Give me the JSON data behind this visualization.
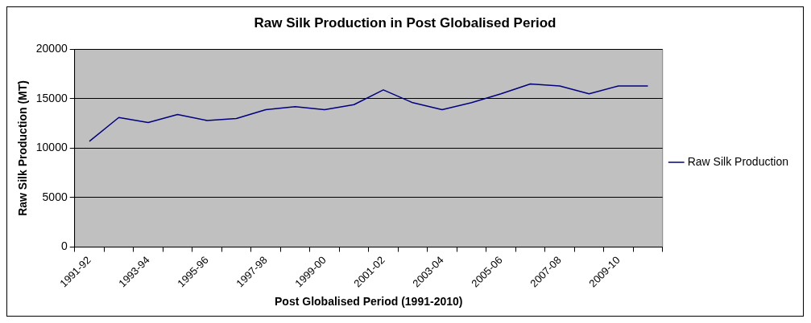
{
  "chart_data": {
    "type": "line",
    "title": "Raw Silk Production in Post Globalised Period",
    "xlabel": "Post Globalised Period (1991-2010)",
    "ylabel": "Raw Silk Production (MT)",
    "categories": [
      "1991-92",
      null,
      "1993-94",
      null,
      "1995-96",
      null,
      "1997-98",
      null,
      "1999-00",
      null,
      "2001-02",
      null,
      "2003-04",
      null,
      "2005-06",
      null,
      "2007-08",
      null,
      "2009-10",
      null
    ],
    "series": [
      {
        "name": "Raw Silk Production",
        "color": "#000080",
        "values": [
          10700,
          13100,
          12600,
          13400,
          12800,
          13000,
          13900,
          14200,
          13900,
          14400,
          15900,
          14600,
          13900,
          14600,
          15500,
          16500,
          16300,
          15500,
          16300,
          16300
        ]
      }
    ],
    "ylim": [
      0,
      20000
    ],
    "yticks": [
      0,
      5000,
      10000,
      15000,
      20000
    ],
    "grid": "y",
    "legend": "right",
    "marker": "none",
    "line_style": "solid"
  }
}
